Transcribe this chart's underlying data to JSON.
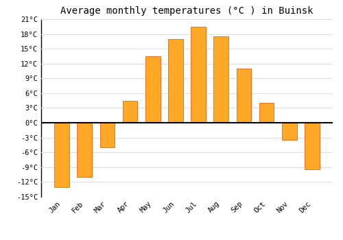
{
  "title": "Average monthly temperatures (°C ) in Buinsk",
  "months": [
    "Jan",
    "Feb",
    "Mar",
    "Apr",
    "May",
    "Jun",
    "Jul",
    "Aug",
    "Sep",
    "Oct",
    "Nov",
    "Dec"
  ],
  "values": [
    -13,
    -11,
    -5,
    4.5,
    13.5,
    17,
    19.5,
    17.5,
    11,
    4,
    -3.5,
    -9.5
  ],
  "bar_color": "#FFA726",
  "bar_edge_color": "#E65100",
  "background_color": "#FFFFFF",
  "grid_color": "#DDDDDD",
  "ylim": [
    -15,
    21
  ],
  "yticks": [
    -15,
    -12,
    -9,
    -6,
    -3,
    0,
    3,
    6,
    9,
    12,
    15,
    18,
    21
  ],
  "ytick_labels": [
    "-15°C",
    "-12°C",
    "-9°C",
    "-6°C",
    "-3°C",
    "0°C",
    "3°C",
    "6°C",
    "9°C",
    "12°C",
    "15°C",
    "18°C",
    "21°C"
  ],
  "title_fontsize": 10,
  "tick_fontsize": 7.5,
  "font_family": "monospace",
  "bar_width": 0.65
}
